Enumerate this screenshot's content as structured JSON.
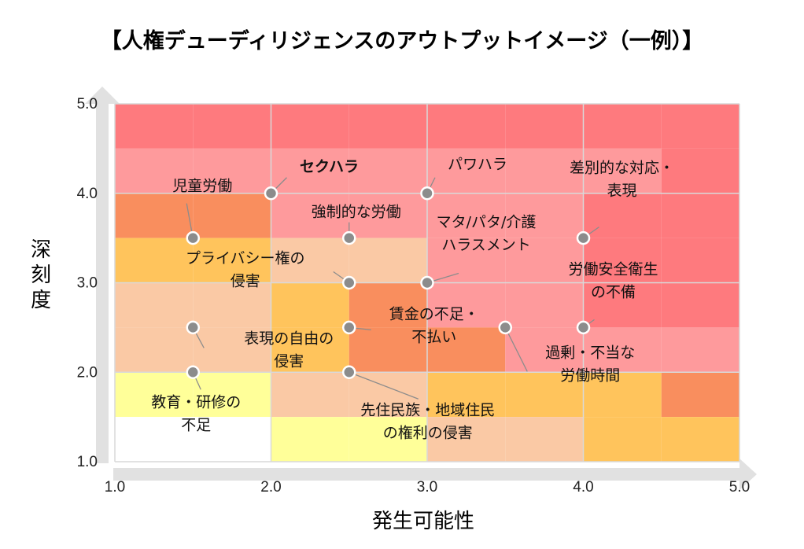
{
  "title": "【人権デューディリジェンスのアウトプットイメージ（一例）】",
  "chart_data": {
    "type": "scatter",
    "title": "【人権デューディリジェンスのアウトプットイメージ（一例）】",
    "xlabel": "発生可能性",
    "ylabel": "深刻度",
    "xlim": [
      1.0,
      5.0
    ],
    "ylim": [
      1.0,
      5.0
    ],
    "x_ticks": [
      "1.0",
      "2.0",
      "3.0",
      "4.0",
      "5.0"
    ],
    "y_ticks": [
      "1.0",
      "2.0",
      "3.0",
      "4.0",
      "5.0"
    ],
    "grid": true,
    "heatmap_colors": {
      "white": "#ffffff",
      "pale_yellow": "#ffff99",
      "light_peach": "#fac9a5",
      "gold": "#ffc45c",
      "orange": "#f98e5e",
      "pink": "#fe9a9c",
      "red": "#fe7a7e"
    },
    "points": [
      {
        "label": "児童労働",
        "x": 1.5,
        "y": 3.5
      },
      {
        "label": "セクハラ",
        "x": 2.0,
        "y": 4.0,
        "emphasis": true
      },
      {
        "label": "パワハラ",
        "x": 3.0,
        "y": 4.0
      },
      {
        "label": "差別的な対応・\n表現",
        "x": 4.0,
        "y": 3.5
      },
      {
        "label": "強制的な労働",
        "x": 2.5,
        "y": 3.5
      },
      {
        "label": "マタ/パタ/介護\nハラスメント",
        "x": 3.0,
        "y": 3.0
      },
      {
        "label": "プライバシー権の\n侵害",
        "x": 2.5,
        "y": 3.0
      },
      {
        "label": "労働安全衛生\nの不備",
        "x": 4.0,
        "y": 2.5
      },
      {
        "label": "賃金の不足・\n不払い",
        "x": 2.5,
        "y": 2.5
      },
      {
        "label": "表現の自由の\n侵害",
        "x": 1.5,
        "y": 2.5
      },
      {
        "label": "過剰・不当な\n労働時間",
        "x": 3.5,
        "y": 2.5
      },
      {
        "label": "教育・研修の\n不足",
        "x": 1.5,
        "y": 2.0
      },
      {
        "label": "先住民族・地域住民\nの権利の侵害",
        "x": 2.5,
        "y": 2.0
      }
    ]
  }
}
